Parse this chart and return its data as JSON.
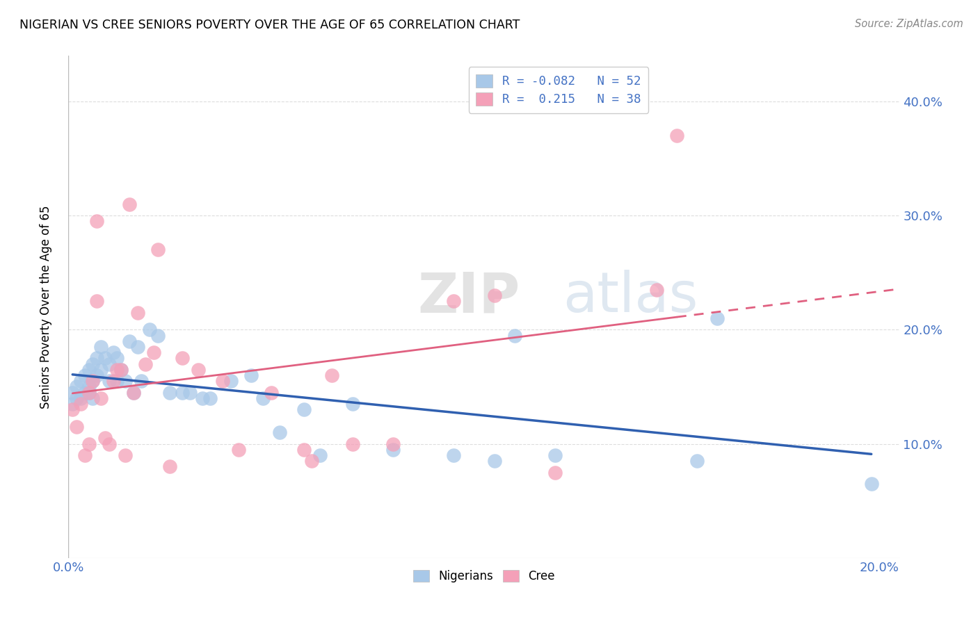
{
  "title": "NIGERIAN VS CREE SENIORS POVERTY OVER THE AGE OF 65 CORRELATION CHART",
  "source": "Source: ZipAtlas.com",
  "ylabel": "Seniors Poverty Over the Age of 65",
  "xlim": [
    0.0,
    0.205
  ],
  "ylim": [
    0.0,
    0.44
  ],
  "nigerian_x": [
    0.001,
    0.001,
    0.002,
    0.002,
    0.003,
    0.003,
    0.004,
    0.004,
    0.005,
    0.005,
    0.005,
    0.006,
    0.006,
    0.006,
    0.007,
    0.007,
    0.008,
    0.008,
    0.009,
    0.01,
    0.01,
    0.011,
    0.012,
    0.012,
    0.013,
    0.014,
    0.015,
    0.016,
    0.017,
    0.018,
    0.02,
    0.022,
    0.025,
    0.028,
    0.03,
    0.033,
    0.035,
    0.04,
    0.045,
    0.048,
    0.052,
    0.058,
    0.062,
    0.07,
    0.08,
    0.095,
    0.105,
    0.11,
    0.12,
    0.155,
    0.16,
    0.198
  ],
  "nigerian_y": [
    0.135,
    0.145,
    0.14,
    0.15,
    0.14,
    0.155,
    0.145,
    0.16,
    0.15,
    0.165,
    0.145,
    0.17,
    0.155,
    0.14,
    0.16,
    0.175,
    0.165,
    0.185,
    0.175,
    0.17,
    0.155,
    0.18,
    0.175,
    0.155,
    0.165,
    0.155,
    0.19,
    0.145,
    0.185,
    0.155,
    0.2,
    0.195,
    0.145,
    0.145,
    0.145,
    0.14,
    0.14,
    0.155,
    0.16,
    0.14,
    0.11,
    0.13,
    0.09,
    0.135,
    0.095,
    0.09,
    0.085,
    0.195,
    0.09,
    0.085,
    0.21,
    0.065
  ],
  "cree_x": [
    0.001,
    0.002,
    0.003,
    0.004,
    0.005,
    0.005,
    0.006,
    0.007,
    0.007,
    0.008,
    0.009,
    0.01,
    0.011,
    0.012,
    0.013,
    0.014,
    0.015,
    0.016,
    0.017,
    0.019,
    0.021,
    0.022,
    0.025,
    0.028,
    0.032,
    0.038,
    0.042,
    0.05,
    0.058,
    0.06,
    0.065,
    0.07,
    0.08,
    0.095,
    0.105,
    0.12,
    0.145,
    0.15
  ],
  "cree_y": [
    0.13,
    0.115,
    0.135,
    0.09,
    0.145,
    0.1,
    0.155,
    0.295,
    0.225,
    0.14,
    0.105,
    0.1,
    0.155,
    0.165,
    0.165,
    0.09,
    0.31,
    0.145,
    0.215,
    0.17,
    0.18,
    0.27,
    0.08,
    0.175,
    0.165,
    0.155,
    0.095,
    0.145,
    0.095,
    0.085,
    0.16,
    0.1,
    0.1,
    0.225,
    0.23,
    0.075,
    0.235,
    0.37
  ],
  "nigerian_color": "#a8c8e8",
  "cree_color": "#f4a0b8",
  "nigerian_line_color": "#3060b0",
  "cree_line_color": "#e06080",
  "background_color": "#ffffff",
  "grid_color": "#dddddd",
  "watermark_zip": "ZIP",
  "watermark_atlas": "atlas",
  "right_yticks": [
    0.1,
    0.2,
    0.3,
    0.4
  ],
  "xtick_show": [
    0.0,
    0.2
  ],
  "legend_r_nigerian": "R = -0.082",
  "legend_n_nigerian": "N = 52",
  "legend_r_cree": "R =  0.215",
  "legend_n_cree": "N = 38"
}
